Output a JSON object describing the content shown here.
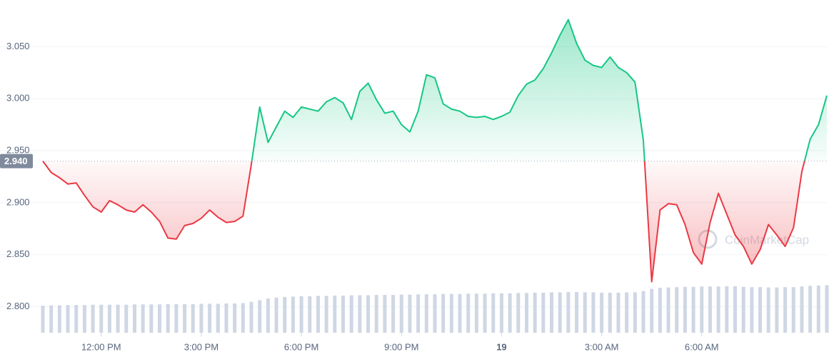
{
  "chart_data": {
    "type": "line",
    "x": [
      10.25,
      10.5,
      10.75,
      11,
      11.25,
      11.5,
      11.75,
      12,
      12.25,
      12.5,
      12.75,
      13,
      13.25,
      13.5,
      13.75,
      14,
      14.25,
      14.5,
      14.75,
      15,
      15.25,
      15.5,
      15.75,
      16,
      16.25,
      16.5,
      16.75,
      17,
      17.25,
      17.5,
      17.75,
      18,
      18.25,
      18.5,
      18.75,
      19,
      19.25,
      19.5,
      19.75,
      20,
      20.25,
      20.5,
      20.75,
      21,
      21.25,
      21.5,
      21.75,
      22,
      22.25,
      22.5,
      22.75,
      23,
      23.25,
      23.5,
      23.75,
      24,
      24.25,
      24.5,
      24.75,
      25,
      25.25,
      25.5,
      25.75,
      26,
      26.25,
      26.5,
      26.75,
      27,
      27.25,
      27.5,
      27.75,
      28,
      28.25,
      28.5,
      28.75,
      29,
      29.25,
      29.5,
      29.75,
      30,
      30.25,
      30.5,
      30.75,
      31,
      31.25,
      31.5,
      31.75,
      32,
      32.25,
      32.5,
      32.75,
      33,
      33.25,
      33.5,
      33.75
    ],
    "series": [
      {
        "color": "#16c784",
        "color_below": "#ea3943",
        "values": [
          2.94,
          2.929,
          2.924,
          2.918,
          2.919,
          2.907,
          2.896,
          2.891,
          2.902,
          2.898,
          2.893,
          2.891,
          2.898,
          2.891,
          2.882,
          2.866,
          2.865,
          2.878,
          2.88,
          2.885,
          2.893,
          2.886,
          2.881,
          2.882,
          2.887,
          2.937,
          2.992,
          2.958,
          2.973,
          2.988,
          2.982,
          2.992,
          2.99,
          2.988,
          2.997,
          3.001,
          2.996,
          2.98,
          3.007,
          3.015,
          2.999,
          2.986,
          2.988,
          2.975,
          2.968,
          2.988,
          3.023,
          3.02,
          2.995,
          2.99,
          2.988,
          2.983,
          2.982,
          2.983,
          2.98,
          2.983,
          2.987,
          3.003,
          3.014,
          3.018,
          3.029,
          3.044,
          3.061,
          3.076,
          3.053,
          3.037,
          3.032,
          3.03,
          3.04,
          3.03,
          3.025,
          3.016,
          2.96,
          2.824,
          2.893,
          2.899,
          2.898,
          2.879,
          2.852,
          2.841,
          2.881,
          2.909,
          2.889,
          2.869,
          2.858,
          2.841,
          2.855,
          2.879,
          2.869,
          2.858,
          2.876,
          2.93,
          2.961,
          2.975,
          3.003
        ]
      },
      {
        "color": "#cfd6e4",
        "axis": "y2",
        "values": [
          8.3,
          8.4,
          8.4,
          8.5,
          8.5,
          8.5,
          8.6,
          8.6,
          8.6,
          8.6,
          8.6,
          8.7,
          8.7,
          8.7,
          8.7,
          8.8,
          8.8,
          8.8,
          8.8,
          8.9,
          8.9,
          8.9,
          9.0,
          9.0,
          9.1,
          9.5,
          10.0,
          10.5,
          10.8,
          11.0,
          11.1,
          11.2,
          11.2,
          11.3,
          11.3,
          11.4,
          11.4,
          11.5,
          11.5,
          11.5,
          11.6,
          11.6,
          11.6,
          11.7,
          11.7,
          11.8,
          11.8,
          11.8,
          11.9,
          11.9,
          11.9,
          12.0,
          12.0,
          12.0,
          12.1,
          12.1,
          12.1,
          12.2,
          12.2,
          12.3,
          12.3,
          12.4,
          12.4,
          12.5,
          12.5,
          12.4,
          12.4,
          12.3,
          12.3,
          12.3,
          12.4,
          12.4,
          12.8,
          13.5,
          13.8,
          13.9,
          14.0,
          14.1,
          14.1,
          14.2,
          14.2,
          14.2,
          14.3,
          14.3,
          14.1,
          14.0,
          14.0,
          13.9,
          13.9,
          14.0,
          14.0,
          14.2,
          14.4,
          14.5,
          14.6
        ]
      }
    ],
    "baseline": {
      "value": 2.94,
      "label": "2.940"
    },
    "xlim": [
      10.25,
      33.75
    ],
    "xticks": [
      {
        "value": 12,
        "label": "12:00 PM"
      },
      {
        "value": 15,
        "label": "3:00 PM"
      },
      {
        "value": 18,
        "label": "6:00 PM"
      },
      {
        "value": 21,
        "label": "9:00 PM"
      },
      {
        "value": 24,
        "label": "19"
      },
      {
        "value": 27,
        "label": "3:00 AM"
      },
      {
        "value": 30,
        "label": "6:00 AM"
      }
    ],
    "ylim": [
      2.775,
      3.088
    ],
    "yticks": [
      {
        "value": 2.8,
        "label": "2.800"
      },
      {
        "value": 2.85,
        "label": "2.850"
      },
      {
        "value": 2.9,
        "label": "2.900"
      },
      {
        "value": 2.95,
        "label": "2.950"
      },
      {
        "value": 3.0,
        "label": "3.000"
      },
      {
        "value": 3.05,
        "label": "3.050"
      }
    ],
    "y2lim": [
      0,
      100
    ],
    "grid": true,
    "watermark": "CoinMarketCap"
  }
}
